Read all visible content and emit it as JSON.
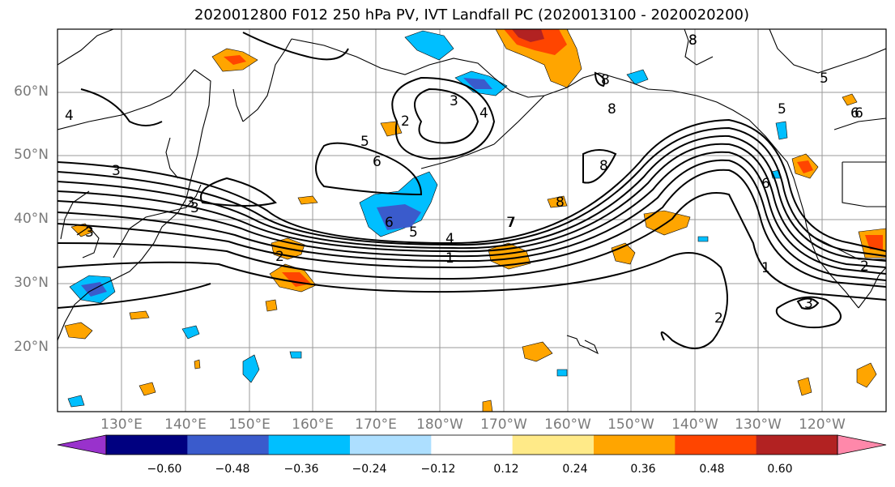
{
  "title": "2020012800 F012 250 hPa PV, IVT Landfall PC (2020013100 - 2020020200)",
  "lat_labels": [
    "60°N",
    "50°N",
    "40°N",
    "30°N",
    "20°N"
  ],
  "lon_labels": [
    "130°E",
    "140°E",
    "150°E",
    "160°E",
    "170°E",
    "180°W",
    "170°W",
    "160°W",
    "150°W",
    "140°W",
    "130°W",
    "120°W"
  ],
  "contour_labels": [
    "3",
    "4",
    "2",
    "3",
    "4",
    "3",
    "7",
    "8",
    "6",
    "5",
    "6",
    "3",
    "3",
    "2",
    "6",
    "5",
    "4",
    "1",
    "7",
    "8",
    "8",
    "8",
    "8",
    "5",
    "5",
    "6",
    "6",
    "8",
    "1",
    "2",
    "3",
    "2"
  ],
  "colorbar": {
    "colors": [
      "#9932CC",
      "#000080",
      "#3A5BCC",
      "#00BFFF",
      "#ADDFFF",
      "#FFFFFF",
      "#FFEA88",
      "#FFA500",
      "#FF4500",
      "#B22222",
      "#FF88AA"
    ],
    "ticks": [
      "−0.60",
      "−0.48",
      "−0.36",
      "−0.24",
      "−0.12",
      "0.12",
      "0.24",
      "0.36",
      "0.48",
      "0.60"
    ]
  },
  "map_colors": {
    "land_line": "#000000",
    "grid": "#999999",
    "contour": "#000000"
  }
}
